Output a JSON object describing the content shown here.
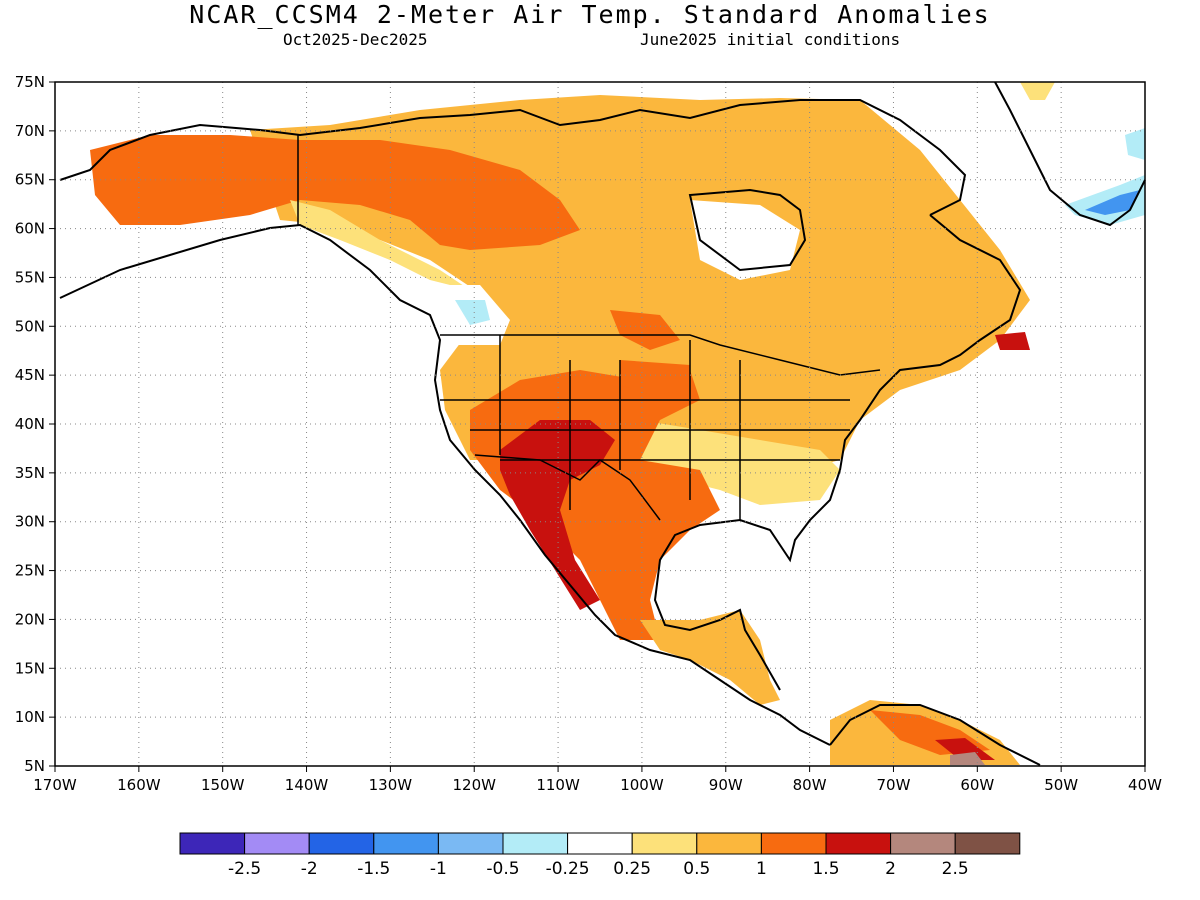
{
  "header": {
    "title": "NCAR_CCSM4 2-Meter Air Temp. Standard Anomalies",
    "period": "Oct2025-Dec2025",
    "init": "June2025 initial conditions"
  },
  "map": {
    "lat_range": [
      5,
      75
    ],
    "lon_range": [
      -170,
      -40
    ],
    "lat_ticks": [
      75,
      70,
      65,
      60,
      55,
      50,
      45,
      40,
      35,
      30,
      25,
      20,
      15,
      10,
      5
    ],
    "lat_labels": [
      "75N",
      "70N",
      "65N",
      "60N",
      "55N",
      "50N",
      "45N",
      "40N",
      "35N",
      "30N",
      "25N",
      "20N",
      "15N",
      "10N",
      "5N"
    ],
    "lon_ticks": [
      -170,
      -160,
      -150,
      -140,
      -130,
      -120,
      -110,
      -100,
      -90,
      -80,
      -70,
      -60,
      -50,
      -40
    ],
    "lon_labels": [
      "170W",
      "160W",
      "150W",
      "140W",
      "130W",
      "120W",
      "110W",
      "100W",
      "90W",
      "80W",
      "70W",
      "60W",
      "50W",
      "40W"
    ],
    "grid": "dotted",
    "regions": [
      {
        "name": "alaska-warm",
        "level": "1 to 1.5",
        "color": "#f76b10"
      },
      {
        "name": "canada-mild",
        "level": "0.5 to 1",
        "color": "#fbb73d"
      },
      {
        "name": "southwest-us-strong",
        "level": "1.5 to 2",
        "color": "#c8110e"
      },
      {
        "name": "mexico-warm",
        "level": "1 to 1.5",
        "color": "#f76b10"
      },
      {
        "name": "greenland-cool",
        "level": "-1 to -0.5",
        "color": "#7ab9f3"
      }
    ]
  },
  "colorbar": {
    "colors": [
      "#3d26b8",
      "#a38bf5",
      "#2364e6",
      "#4295f0",
      "#7ab9f3",
      "#b3ecf7",
      "#ffffff",
      "#fde17a",
      "#fbb73d",
      "#f76b10",
      "#c8110e",
      "#b4877d",
      "#7f5245"
    ],
    "labels": [
      "-2.5",
      "-2",
      "-1.5",
      "-1",
      "-0.5",
      "-0.25",
      "0.25",
      "0.5",
      "1",
      "1.5",
      "2",
      "2.5"
    ]
  }
}
